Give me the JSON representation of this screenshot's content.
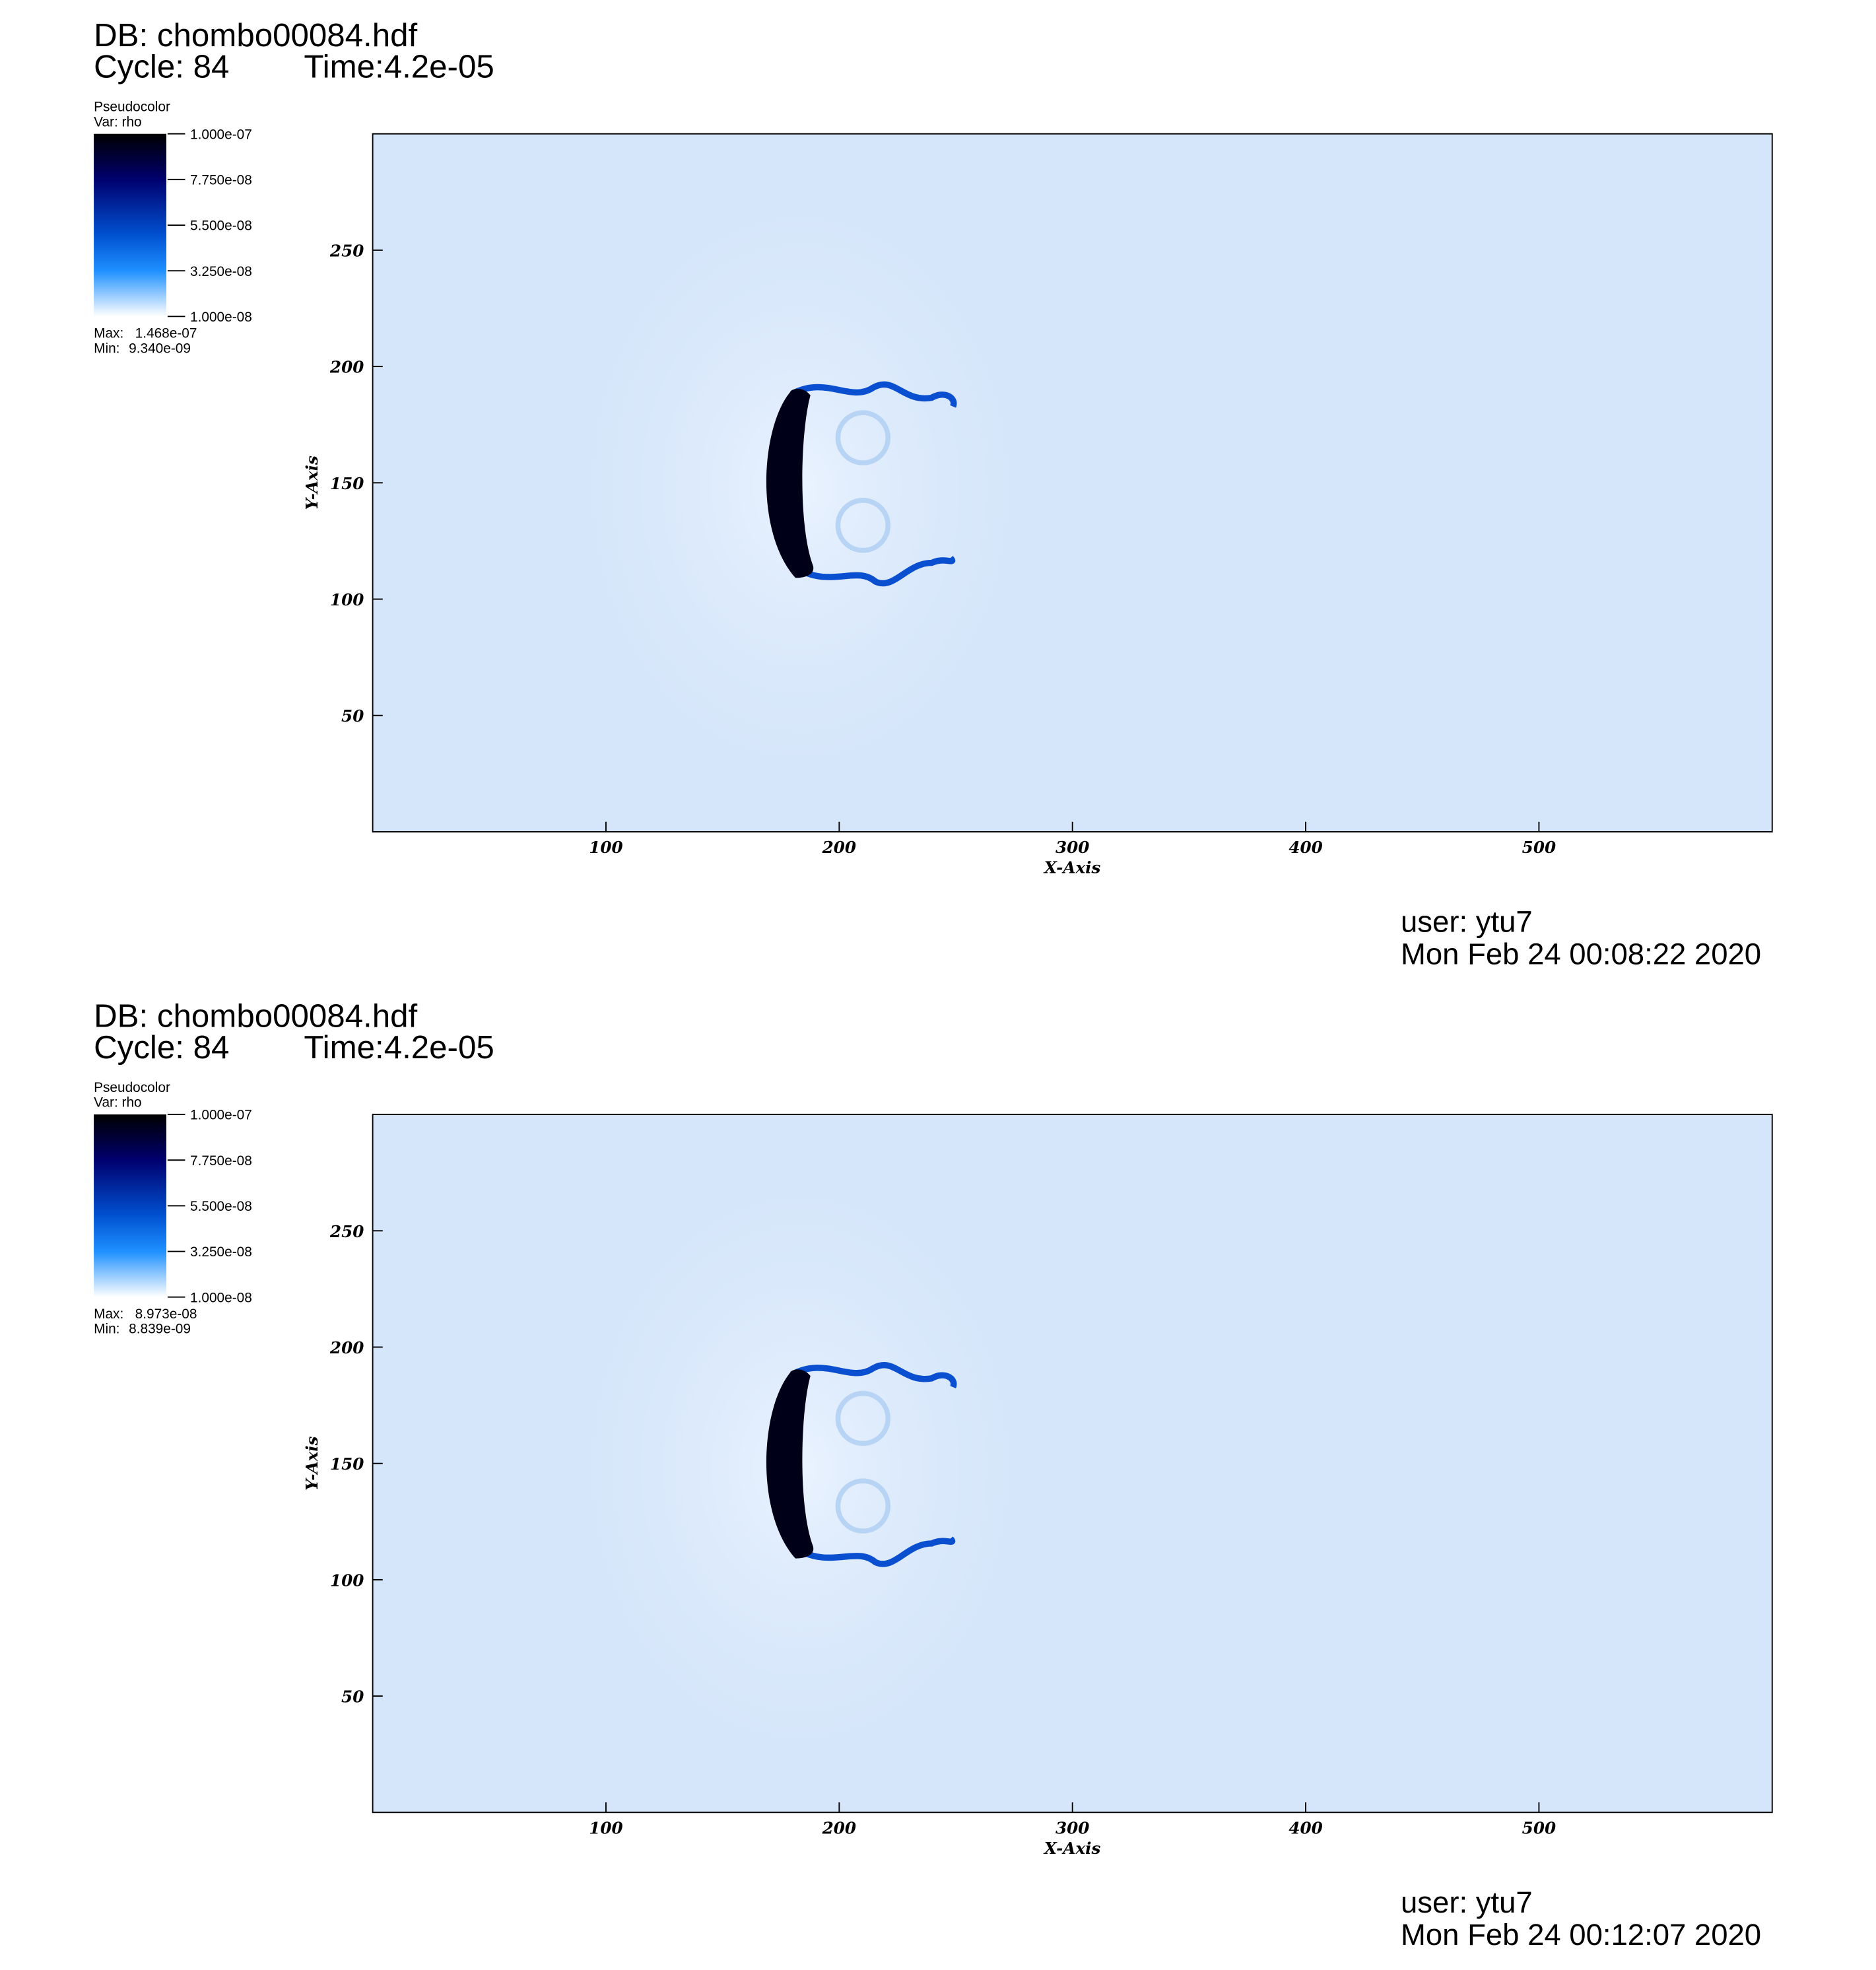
{
  "charts": [
    {
      "chart_data": {
        "type": "pseudocolor",
        "db": "DB: chombo00084.hdf",
        "cycle": "Cycle: 84",
        "time": "Time:4.2e-05",
        "plot_name": "Pseudocolor",
        "variable": "Var: rho",
        "clim": [
          1e-08,
          1e-07
        ],
        "legend_ticks": [
          {
            "value": 1e-07,
            "label": "1.000e-07"
          },
          {
            "value": 7.75e-08,
            "label": "7.750e-08"
          },
          {
            "value": 5.5e-08,
            "label": "5.500e-08"
          },
          {
            "value": 3.25e-08,
            "label": "3.250e-08"
          },
          {
            "value": 1e-08,
            "label": "1.000e-08"
          }
        ],
        "max_label": "Max:",
        "max": "1.468e-07",
        "min_label": "Min:",
        "min": "9.340e-09",
        "x_label": "X-Axis",
        "y_label": "Y-Axis",
        "xlim": [
          0,
          600
        ],
        "ylim": [
          0,
          300
        ],
        "xticks": [
          100,
          200,
          300,
          400,
          500
        ],
        "yticks": [
          50,
          100,
          150,
          200,
          250
        ],
        "user": "user: ytu7",
        "date": "Mon Feb 24 00:08:22 2020"
      }
    },
    {
      "chart_data": {
        "type": "pseudocolor",
        "db": "DB: chombo00084.hdf",
        "cycle": "Cycle: 84",
        "time": "Time:4.2e-05",
        "plot_name": "Pseudocolor",
        "variable": "Var: rho",
        "clim": [
          1e-08,
          1e-07
        ],
        "legend_ticks": [
          {
            "value": 1e-07,
            "label": "1.000e-07"
          },
          {
            "value": 7.75e-08,
            "label": "7.750e-08"
          },
          {
            "value": 5.5e-08,
            "label": "5.500e-08"
          },
          {
            "value": 3.25e-08,
            "label": "3.250e-08"
          },
          {
            "value": 1e-08,
            "label": "1.000e-08"
          }
        ],
        "max_label": "Max:",
        "max": "8.973e-08",
        "min_label": "Min:",
        "min": "8.839e-09",
        "x_label": "X-Axis",
        "y_label": "Y-Axis",
        "xlim": [
          0,
          600
        ],
        "ylim": [
          0,
          300
        ],
        "xticks": [
          100,
          200,
          300,
          400,
          500
        ],
        "yticks": [
          50,
          100,
          150,
          200,
          250
        ],
        "user": "user: ytu7",
        "date": "Mon Feb 24 00:12:07 2020"
      }
    }
  ]
}
